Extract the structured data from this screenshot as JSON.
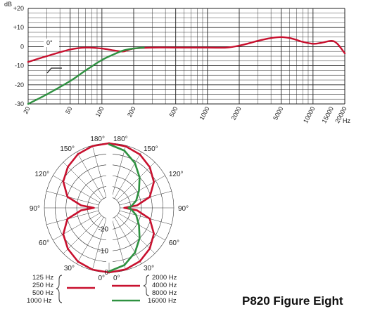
{
  "title": "P820 Figure Eight",
  "chart_data": [
    {
      "type": "line",
      "xscale": "log",
      "xlim": [
        20,
        20000
      ],
      "ylim": [
        -30,
        20
      ],
      "xlabel": "Hz",
      "ylabel": "dB",
      "x_tick_labels": [
        "20",
        "50",
        "100",
        "200",
        "500",
        "1000",
        "2000",
        "5000",
        "10000",
        "15000",
        "20000"
      ],
      "y_tick_labels": [
        "+20",
        "+10",
        "0",
        "-10",
        "-20",
        "-30"
      ],
      "annotations": [
        "0°"
      ],
      "grid": true,
      "series": [
        {
          "color": "#c8102e",
          "x": [
            20,
            30,
            50,
            70,
            100,
            130,
            160,
            200,
            300,
            500,
            1000,
            1500,
            2000,
            3000,
            4000,
            5000,
            6000,
            7000,
            8000,
            10000,
            12000,
            15000,
            17000,
            20000
          ],
          "y": [
            -8,
            -5,
            -1.5,
            -0.5,
            -1,
            -2,
            -2.5,
            -1,
            -0.5,
            -0.5,
            -0.5,
            -0.5,
            0.5,
            3,
            4.5,
            5,
            4.5,
            3.5,
            2.5,
            1.5,
            2,
            3,
            1.5,
            -3.5
          ]
        },
        {
          "color": "#2e9140",
          "x": [
            20,
            30,
            50,
            70,
            100,
            130,
            160,
            200,
            250
          ],
          "y": [
            -30,
            -25,
            -18,
            -12.5,
            -7,
            -4,
            -2,
            -1,
            -0.5
          ]
        }
      ]
    },
    {
      "type": "polar",
      "angle_labels": [
        "180°",
        "150°",
        "120°",
        "90°",
        "60°",
        "30°",
        "0°"
      ],
      "radial_labels": [
        "-20",
        "-10",
        "0"
      ],
      "rlim": [
        -30,
        0
      ],
      "series": [
        {
          "legend": [
            "125 Hz",
            "250 Hz",
            "500 Hz",
            "1000 Hz"
          ],
          "color": "#c8102e",
          "side": "left",
          "angle": [
            0,
            15,
            30,
            45,
            60,
            75,
            85,
            90
          ],
          "value": [
            0,
            -0.3,
            -1.2,
            -3,
            -5.5,
            -10,
            -17,
            -23
          ]
        },
        {
          "legend": [
            "2000 Hz",
            "4000 Hz",
            "8000 Hz"
          ],
          "color": "#c8102e",
          "side": "right",
          "angle": [
            0,
            15,
            30,
            45,
            60,
            75,
            85,
            90
          ],
          "value": [
            0,
            -0.4,
            -1.4,
            -3.3,
            -6,
            -10.5,
            -17,
            -23
          ]
        },
        {
          "legend": [
            "16000 Hz"
          ],
          "color": "#2e9140",
          "side": "right",
          "angle": [
            0,
            15,
            30,
            45,
            60,
            75,
            85,
            90
          ],
          "value": [
            -0.5,
            -2.5,
            -6,
            -10,
            -14,
            -17,
            -19.5,
            -21
          ]
        }
      ]
    }
  ]
}
